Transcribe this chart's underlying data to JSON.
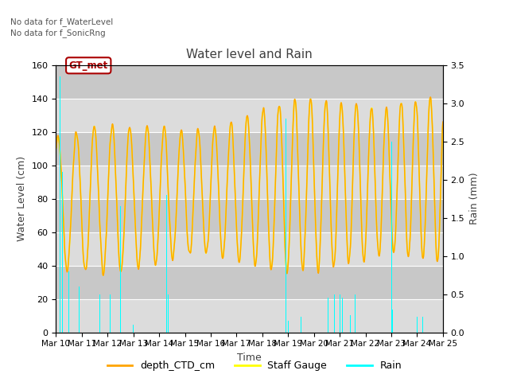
{
  "title": "Water level and Rain",
  "xlabel": "Time",
  "ylabel_left": "Water Level (cm)",
  "ylabel_right": "Rain (mm)",
  "ylim_left": [
    0,
    160
  ],
  "ylim_right": [
    0,
    3.5
  ],
  "yticks_left": [
    0,
    20,
    40,
    60,
    80,
    100,
    120,
    140,
    160
  ],
  "yticks_right": [
    0.0,
    0.5,
    1.0,
    1.5,
    2.0,
    2.5,
    3.0,
    3.5
  ],
  "xtick_labels": [
    "Mar 10",
    "Mar 11",
    "Mar 12",
    "Mar 13",
    "Mar 14",
    "Mar 15",
    "Mar 16",
    "Mar 17",
    "Mar 18",
    "Mar 19",
    "Mar 20",
    "Mar 21",
    "Mar 22",
    "Mar 23",
    "Mar 24",
    "Mar 25"
  ],
  "annotation_lines": [
    "No data for f_WaterLevel",
    "No data for f_SonicRng"
  ],
  "annotation_box": "GT_met",
  "color_ctd": "#FFA500",
  "color_staff": "#FFFF00",
  "color_rain": "#00FFFF",
  "legend_labels": [
    "depth_CTD_cm",
    "Staff Gauge",
    "Rain"
  ],
  "bg_color": "#DCDCDC",
  "bg_color2": "#C8C8C8",
  "title_color": "#404040",
  "label_color": "#404040"
}
